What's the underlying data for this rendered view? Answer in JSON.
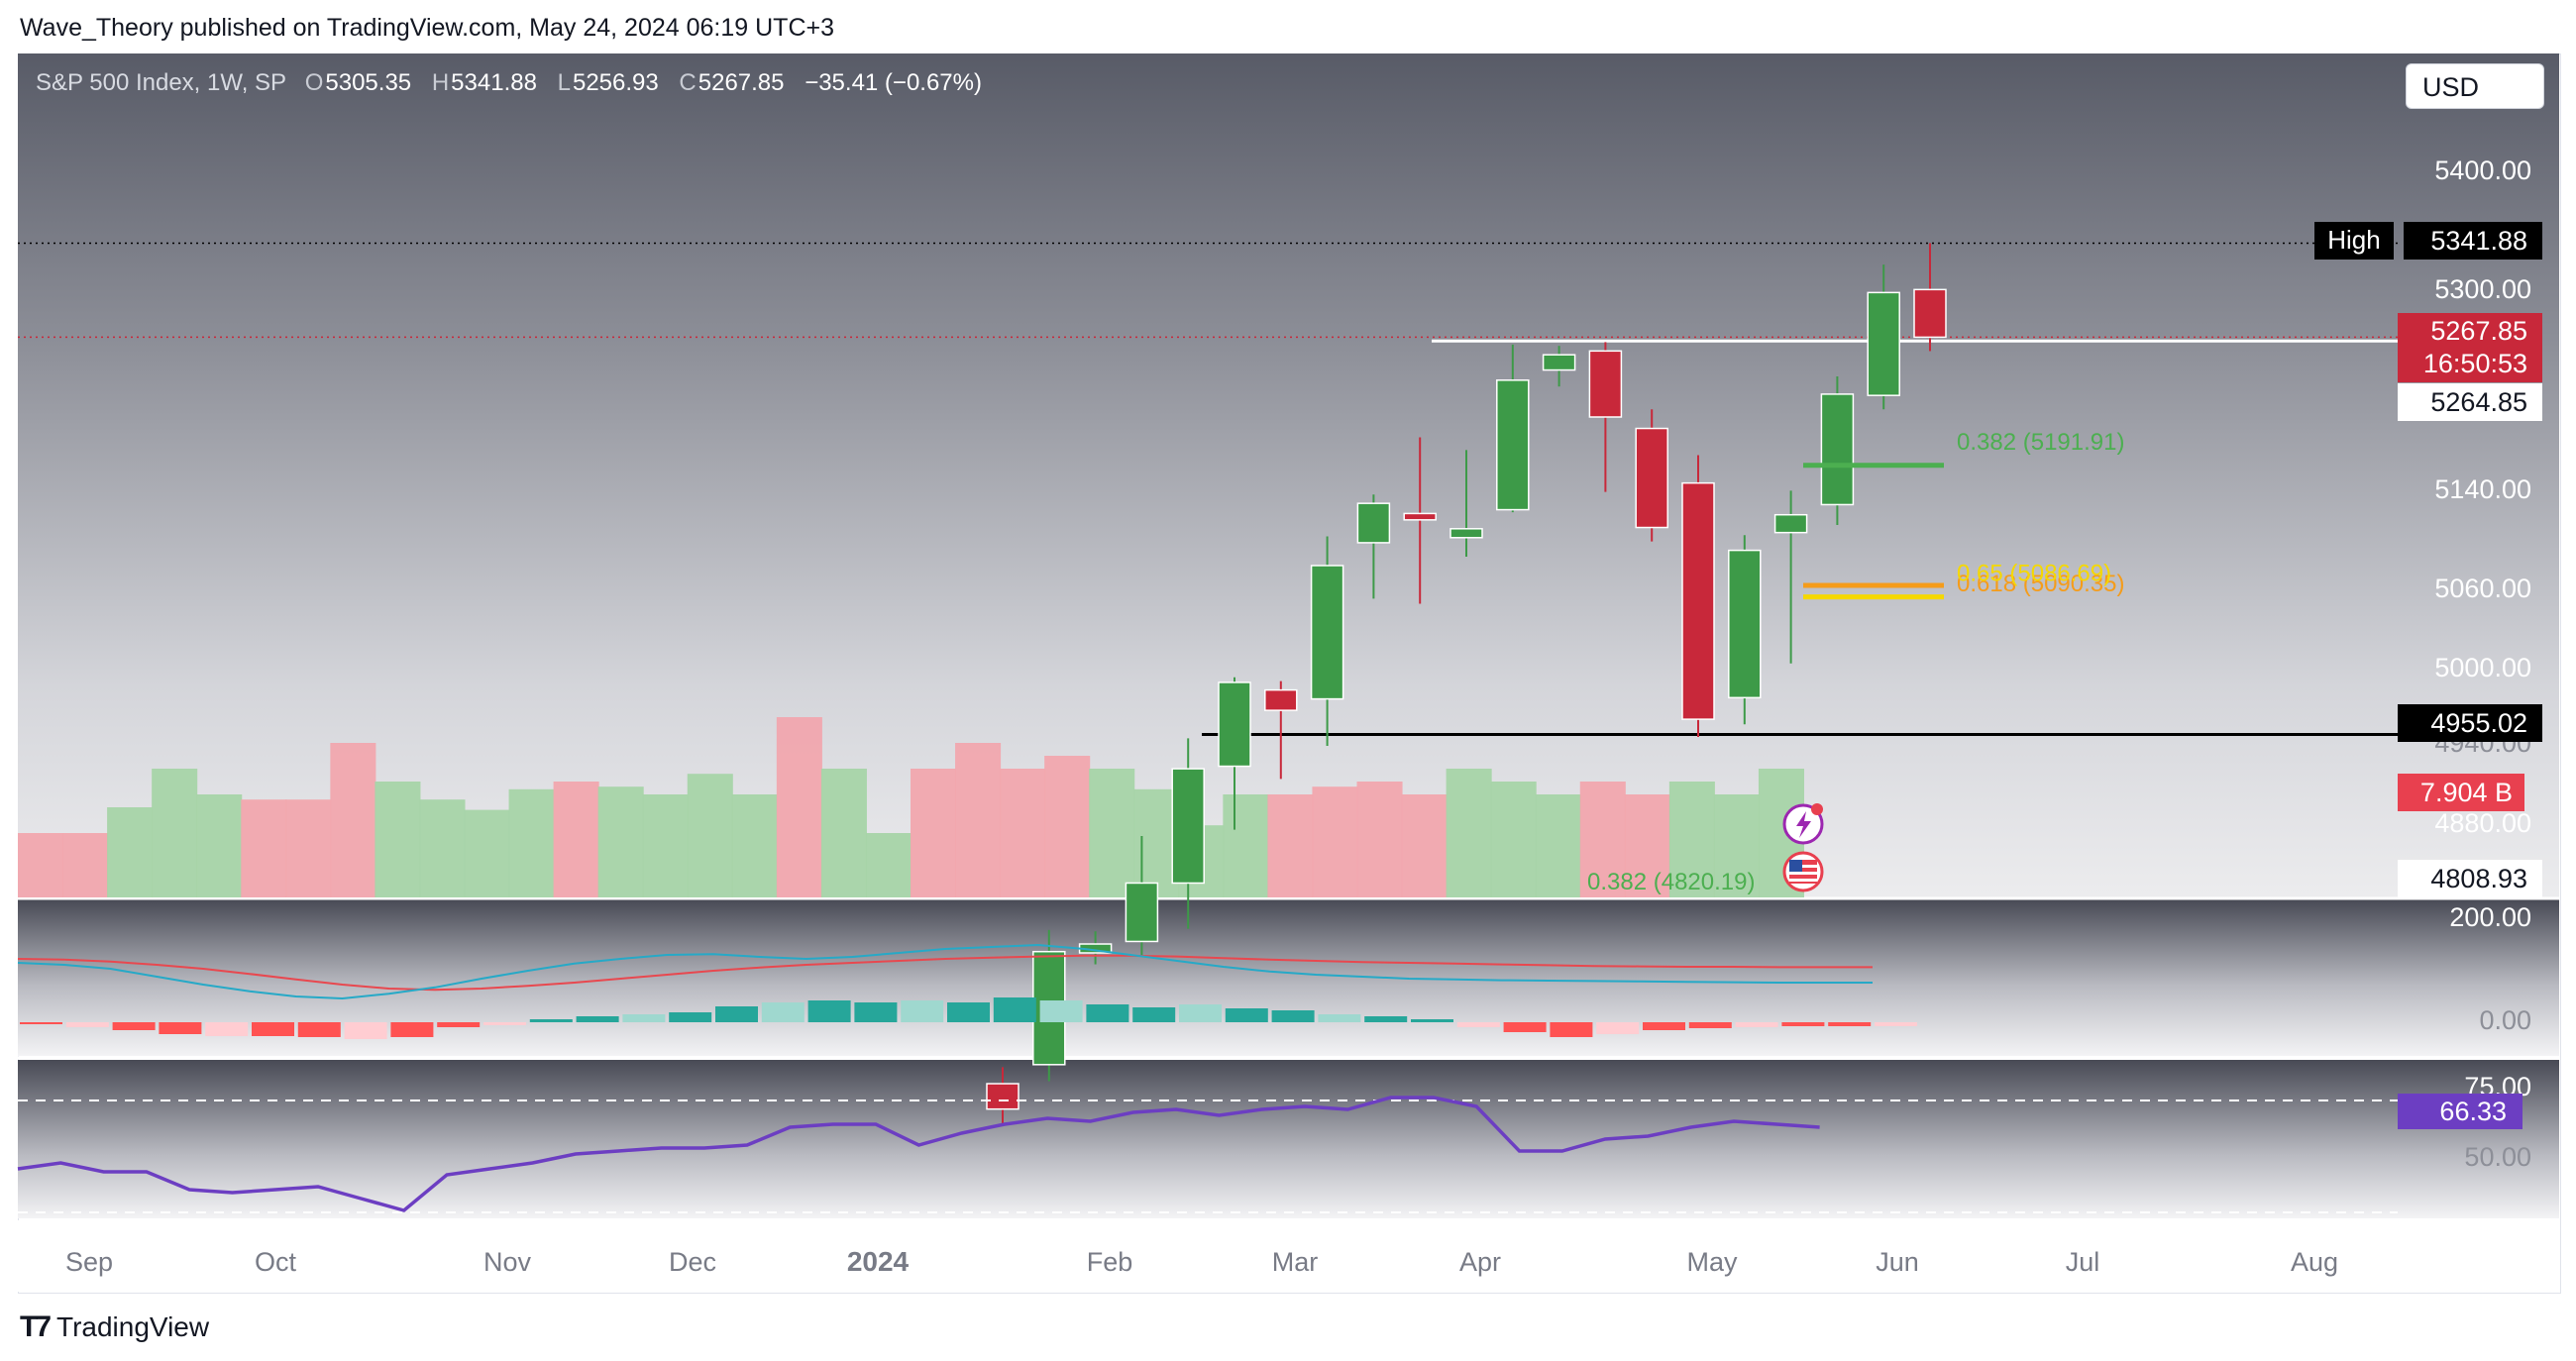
{
  "publisher": "Wave_Theory published on TradingView.com, May 24, 2024 06:19 UTC+3",
  "symbol": {
    "name": "S&P 500 Index, 1W, SP",
    "open_label": "O",
    "open": "5305.35",
    "high_label": "H",
    "high": "5341.88",
    "low_label": "L",
    "low": "5256.93",
    "close_label": "C",
    "close": "5267.85",
    "change": "−35.41 (−0.67%)"
  },
  "currency": "USD",
  "footer": {
    "brand": "TradingView",
    "logo_icon": "tradingview-logo-icon"
  },
  "colors": {
    "up": "#3d9a48",
    "down": "#c8283a",
    "macd": "#26a9c7",
    "signal": "#e8484f",
    "rsi": "#6c3ec2",
    "volume_up": "#a6d4a8",
    "volume_down": "#f1a6ae",
    "fib_382": "#4caf50",
    "fib_618": "#f59c1a",
    "fib_65": "#f5d800"
  },
  "chart_data": {
    "type": "candlestick",
    "timeframe": "1W",
    "x_ticks": [
      "Sep",
      "Oct",
      "Nov",
      "Dec",
      "2024",
      "Feb",
      "Mar",
      "Apr",
      "May",
      "Jun",
      "Jul",
      "Aug"
    ],
    "y_ticks": [
      "5400.00",
      "5300.00",
      "5140.00",
      "5060.00",
      "5000.00",
      "4940.00",
      "4880.00"
    ],
    "candles": [
      {
        "o": 4680.0,
        "h": 4693.0,
        "l": 4648.0,
        "c": 4660.0
      },
      {
        "o": 4695.0,
        "h": 4801.0,
        "l": 4682.0,
        "c": 4784.0
      },
      {
        "o": 4783.0,
        "h": 4800.0,
        "l": 4774.0,
        "c": 4790.0
      },
      {
        "o": 4792.0,
        "h": 4875.0,
        "l": 4780.0,
        "c": 4838.0
      },
      {
        "o": 4838.0,
        "h": 4952.0,
        "l": 4802.0,
        "c": 4928.0
      },
      {
        "o": 4930.0,
        "h": 5000.0,
        "l": 4880.0,
        "c": 4996.0
      },
      {
        "o": 4990.0,
        "h": 4997.0,
        "l": 4920.0,
        "c": 4974.0
      },
      {
        "o": 4983.0,
        "h": 5111.0,
        "l": 4946.0,
        "c": 5088.0
      },
      {
        "o": 5106.0,
        "h": 5144.0,
        "l": 5062.0,
        "c": 5137.0
      },
      {
        "o": 5129.0,
        "h": 5189.0,
        "l": 5058.0,
        "c": 5124.0
      },
      {
        "o": 5110.0,
        "h": 5179.0,
        "l": 5095.0,
        "c": 5117.0
      },
      {
        "o": 5132.0,
        "h": 5262.0,
        "l": 5130.0,
        "c": 5234.0
      },
      {
        "o": 5242.0,
        "h": 5261.0,
        "l": 5229.0,
        "c": 5254.0
      },
      {
        "o": 5257.0,
        "h": 5264.0,
        "l": 5146.0,
        "c": 5205.0
      },
      {
        "o": 5196.0,
        "h": 5211.0,
        "l": 5107.0,
        "c": 5118.0
      },
      {
        "o": 5153.0,
        "h": 5175.0,
        "l": 4953.0,
        "c": 4967.0
      },
      {
        "o": 4984.0,
        "h": 5112.0,
        "l": 4963.0,
        "c": 5100.0
      },
      {
        "o": 5114.0,
        "h": 5147.0,
        "l": 5011.0,
        "c": 5128.0
      },
      {
        "o": 5136.0,
        "h": 5237.0,
        "l": 5120.0,
        "c": 5223.0
      },
      {
        "o": 5222.0,
        "h": 5325.0,
        "l": 5211.0,
        "c": 5303.0
      },
      {
        "o": 5305.35,
        "h": 5341.88,
        "l": 5256.93,
        "c": 5267.85
      }
    ],
    "price_labels": {
      "high_tag": "High",
      "high": "5341.88",
      "last": "5267.85",
      "countdown": "16:50:53",
      "resistance": "5264.85",
      "support": "4955.02",
      "volume": "7.904 B",
      "lower_bound": "4808.93"
    },
    "horizontal_levels": [
      5264.85,
      4955.02
    ],
    "fib_levels": [
      {
        "label": "0.382 (5191.91)",
        "value": 5191.91,
        "color": "#4caf50"
      },
      {
        "label": "0.618 (5090.35)",
        "value": 5090.35,
        "color": "#f59c1a"
      },
      {
        "label": "0.65 (5086.69)",
        "value": 5086.69,
        "color": "#f5d800"
      },
      {
        "label": "0.382 (4820.19)",
        "value": 4820.19,
        "color": "#4caf50"
      }
    ],
    "volume_profile_direction": [
      "down",
      "down",
      "up",
      "up",
      "up",
      "down",
      "down",
      "down",
      "up",
      "up",
      "up",
      "up",
      "down",
      "up",
      "up",
      "up",
      "up",
      "down",
      "up",
      "up",
      "down",
      "down",
      "down",
      "down",
      "up",
      "up",
      "up",
      "up",
      "down",
      "down",
      "down",
      "down",
      "up",
      "up",
      "up",
      "down",
      "down",
      "up",
      "up",
      "up"
    ],
    "volume_profile_level": [
      0.25,
      0.25,
      0.35,
      0.5,
      0.4,
      0.38,
      0.38,
      0.6,
      0.45,
      0.38,
      0.34,
      0.42,
      0.45,
      0.43,
      0.4,
      0.48,
      0.4,
      0.7,
      0.5,
      0.25,
      0.5,
      0.6,
      0.5,
      0.55,
      0.5,
      0.42,
      0.28,
      0.4,
      0.4,
      0.43,
      0.45,
      0.4,
      0.5,
      0.45,
      0.4,
      0.45,
      0.4,
      0.45,
      0.4,
      0.5
    ],
    "macd": {
      "y_ticks": [
        "200.00",
        "0.00"
      ],
      "macd_line": [
        150,
        145,
        135,
        115,
        95,
        78,
        65,
        60,
        72,
        88,
        110,
        130,
        148,
        160,
        170,
        172,
        165,
        160,
        165,
        175,
        185,
        190,
        195,
        185,
        170,
        155,
        140,
        128,
        120,
        115,
        110,
        108,
        106,
        105,
        104,
        103,
        102,
        101,
        100,
        100,
        100
      ],
      "signal_line": [
        160,
        158,
        153,
        145,
        135,
        122,
        108,
        95,
        85,
        82,
        85,
        92,
        100,
        110,
        120,
        130,
        138,
        145,
        150,
        155,
        160,
        163,
        166,
        168,
        168,
        166,
        162,
        158,
        155,
        152,
        150,
        148,
        146,
        144,
        142,
        141,
        140,
        140,
        139,
        139,
        139
      ],
      "histogram": [
        -2,
        -5,
        -8,
        -12,
        -14,
        -14,
        -15,
        -17,
        -15,
        -5,
        -3,
        3,
        6,
        8,
        10,
        16,
        20,
        22,
        20,
        22,
        20,
        25,
        22,
        18,
        15,
        18,
        14,
        12,
        8,
        6,
        3,
        -5,
        -10,
        -15,
        -12,
        -8,
        -6,
        -5,
        -4,
        -4,
        -4
      ]
    },
    "rsi": {
      "value": "66.33",
      "y_ticks": [
        "75.00",
        "50.00"
      ],
      "values": [
        52,
        54,
        51,
        51,
        45,
        44,
        45,
        46,
        42,
        38,
        50,
        52,
        54,
        57,
        58,
        59,
        59,
        60,
        66,
        67,
        67,
        60,
        64,
        67,
        69,
        68,
        71,
        72,
        70,
        72,
        73,
        72,
        76,
        76,
        73,
        58,
        58,
        62,
        63,
        66,
        68,
        67,
        66
      ]
    }
  }
}
